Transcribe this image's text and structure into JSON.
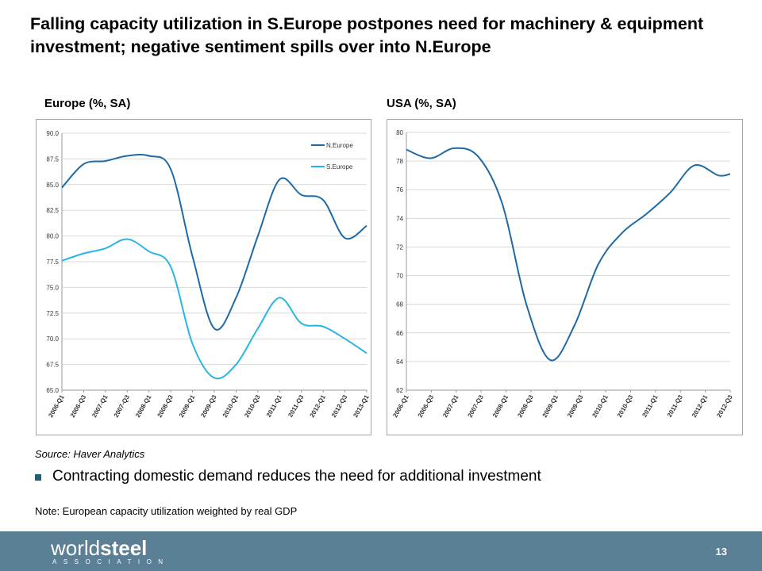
{
  "title": "Falling capacity utilization in S.Europe postpones need for machinery & equipment investment; negative sentiment spills over into N.Europe",
  "source": "Source: Haver Analytics",
  "bullet": "Contracting domestic demand reduces the need for additional investment",
  "note": "Note: European capacity utilization weighted by real GDP",
  "logo": {
    "main_light": "world",
    "main_bold": "steel",
    "sub": "ASSOCIATION"
  },
  "page_number": "13",
  "colors": {
    "n_europe": "#1f6aa5",
    "s_europe": "#27b5e6",
    "usa": "#1f6aa5",
    "footer": "#5b7f94"
  },
  "chart_data": [
    {
      "type": "line",
      "title": "Europe (%, SA)",
      "x_ticks": [
        "2006-Q1",
        "2006-Q3",
        "2007-Q1",
        "2007-Q3",
        "2008-Q1",
        "2008-Q3",
        "2009-Q1",
        "2009-Q3",
        "2010-Q1",
        "2010-Q3",
        "2011-Q1",
        "2011-Q3",
        "2012-Q1",
        "2012-Q3",
        "2013-Q1"
      ],
      "x_range": [
        0,
        28
      ],
      "ylim": [
        65,
        90
      ],
      "y_ticks": [
        "65.0",
        "67.5",
        "70.0",
        "72.5",
        "75.0",
        "77.5",
        "80.0",
        "82.5",
        "85.0",
        "87.5",
        "90.0"
      ],
      "legend_position": "top-right",
      "series": [
        {
          "name": "N.Europe",
          "x": [
            0,
            2,
            4,
            6,
            8,
            10,
            12,
            14,
            16,
            18,
            20,
            22,
            24,
            26,
            28
          ],
          "values": [
            84.7,
            87.0,
            87.3,
            87.8,
            87.8,
            86.5,
            78.0,
            71.0,
            74.0,
            80.0,
            85.5,
            84.0,
            83.5,
            79.8,
            81.0
          ]
        },
        {
          "name": "S.Europe",
          "x": [
            0,
            2,
            4,
            6,
            8,
            10,
            12,
            14,
            16,
            18,
            20,
            22,
            24,
            26,
            28
          ],
          "values": [
            77.6,
            78.3,
            78.8,
            79.7,
            78.5,
            77.0,
            69.5,
            66.2,
            67.5,
            71.0,
            74.0,
            71.5,
            71.2,
            70.0,
            68.6
          ]
        }
      ]
    },
    {
      "type": "line",
      "title": "USA (%, SA)",
      "x_ticks": [
        "2006-Q1",
        "2006-Q3",
        "2007-Q1",
        "2007-Q3",
        "2008-Q1",
        "2008-Q3",
        "2009-Q1",
        "2009-Q3",
        "2010-Q1",
        "2010-Q3",
        "2011-Q1",
        "2011-Q3",
        "2012-Q1",
        "2012-Q3"
      ],
      "x_range": [
        0,
        27
      ],
      "ylim": [
        62,
        80
      ],
      "y_ticks": [
        "62",
        "64",
        "66",
        "68",
        "70",
        "72",
        "74",
        "76",
        "78",
        "80"
      ],
      "series": [
        {
          "name": "",
          "x": [
            0,
            2,
            4,
            6,
            8,
            10,
            12,
            14,
            16,
            18,
            20,
            22,
            24,
            26,
            27
          ],
          "values": [
            78.8,
            78.2,
            78.9,
            78.3,
            75.0,
            68.0,
            64.1,
            66.5,
            70.8,
            73.0,
            74.3,
            75.8,
            77.7,
            77.0,
            77.1
          ]
        }
      ]
    }
  ]
}
